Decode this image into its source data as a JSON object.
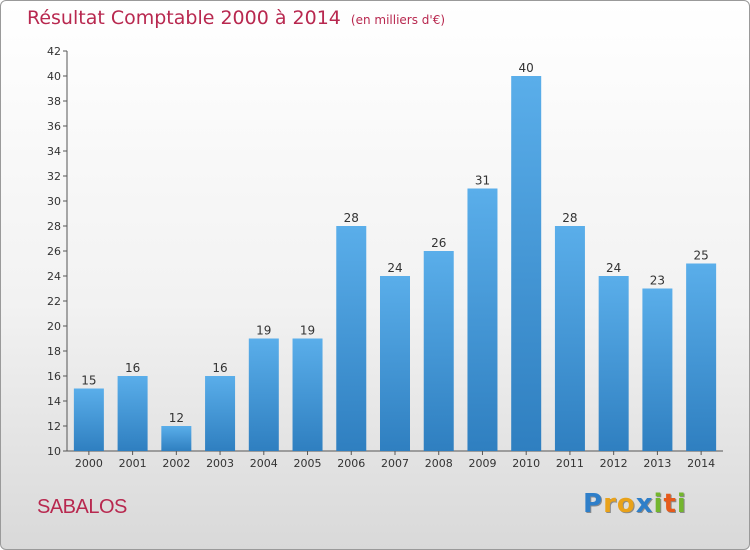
{
  "chart_data": {
    "type": "bar",
    "title": "Résultat Comptable 2000 à 2014",
    "subtitle": "(en milliers d'€)",
    "categories": [
      "2000",
      "2001",
      "2002",
      "2003",
      "2004",
      "2005",
      "2006",
      "2007",
      "2008",
      "2009",
      "2010",
      "2011",
      "2012",
      "2013",
      "2014"
    ],
    "values": [
      15,
      16,
      12,
      16,
      19,
      19,
      28,
      24,
      26,
      31,
      40,
      28,
      24,
      23,
      25
    ],
    "ylim": [
      10,
      42
    ],
    "yticks": [
      10,
      12,
      14,
      16,
      18,
      20,
      22,
      24,
      26,
      28,
      30,
      32,
      34,
      36,
      38,
      40,
      42
    ],
    "grid": false,
    "bar_color": "#3a8fd4",
    "bar_color_light": "#5aaeea"
  },
  "footer": {
    "town": "SABALOS",
    "logo": [
      "P",
      "r",
      "o",
      "x",
      "i",
      "t",
      "i"
    ],
    "logo_colors": [
      "#2f7fc9",
      "#e9a21a",
      "#e9a21a",
      "#2f7fc9",
      "#74b62e",
      "#e55a1c",
      "#74b62e"
    ]
  }
}
